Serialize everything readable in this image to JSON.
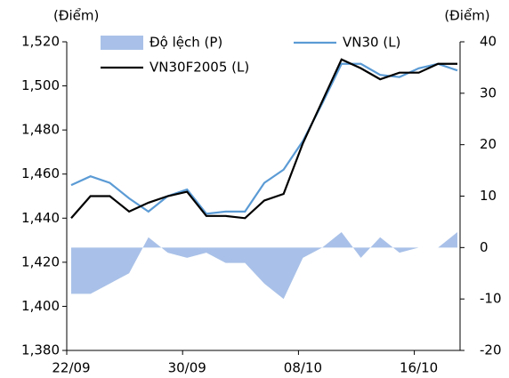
{
  "chart_data": {
    "type": "line",
    "y_label": "(Điểm)",
    "y2_label": "(Điểm)",
    "categories": [
      "22/09",
      null,
      null,
      null,
      null,
      null,
      "30/09",
      null,
      null,
      null,
      null,
      null,
      "08/10",
      null,
      null,
      null,
      null,
      null,
      "16/10",
      null,
      null
    ],
    "series": [
      {
        "name": "Độ lệch (P)",
        "type": "area",
        "axis": "y2",
        "color": "#a9c1e8",
        "values": [
          -9,
          -9,
          -7,
          -5,
          2,
          -1,
          -2,
          -1,
          -3,
          -3,
          -7,
          -10,
          -2,
          0,
          3,
          -2,
          2,
          -1,
          0,
          0,
          3
        ]
      },
      {
        "name": "VN30 (L)",
        "type": "line",
        "color": "#5b9bd5",
        "values": [
          1455,
          1459,
          1456,
          1449,
          1443,
          1450,
          1453,
          1442,
          1443,
          1443,
          1456,
          1462,
          1475,
          1492,
          1510,
          1510,
          1505,
          1504,
          1508,
          1510,
          1507
        ]
      },
      {
        "name": "VN30F2005 (L)",
        "type": "line",
        "color": "#000000",
        "values": [
          1440,
          1450,
          1450,
          1443,
          1447,
          1450,
          1452,
          1441,
          1441,
          1440,
          1448,
          1451,
          1474,
          1493,
          1512,
          1508,
          1503,
          1506,
          1506,
          1510,
          1510
        ]
      }
    ],
    "ylim": [
      1380,
      1520
    ],
    "yticks": [
      {
        "value": 1380,
        "label": "1,380"
      },
      {
        "value": 1400,
        "label": "1,400"
      },
      {
        "value": 1420,
        "label": "1,420"
      },
      {
        "value": 1440,
        "label": "1,440"
      },
      {
        "value": 1460,
        "label": "1,460"
      },
      {
        "value": 1480,
        "label": "1,480"
      },
      {
        "value": 1500,
        "label": "1,500"
      },
      {
        "value": 1520,
        "label": "1,520"
      }
    ],
    "y2lim": [
      -20,
      40
    ],
    "y2ticks": [
      -20,
      -10,
      0,
      10,
      20,
      30,
      40
    ],
    "grid": false,
    "legend": "top"
  }
}
